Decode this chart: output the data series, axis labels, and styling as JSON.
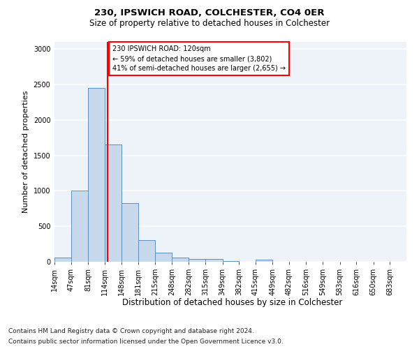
{
  "title1": "230, IPSWICH ROAD, COLCHESTER, CO4 0ER",
  "title2": "Size of property relative to detached houses in Colchester",
  "xlabel": "Distribution of detached houses by size in Colchester",
  "ylabel": "Number of detached properties",
  "footnote1": "Contains HM Land Registry data © Crown copyright and database right 2024.",
  "footnote2": "Contains public sector information licensed under the Open Government Licence v3.0.",
  "annotation_line1": "230 IPSWICH ROAD: 120sqm",
  "annotation_line2": "← 59% of detached houses are smaller (3,802)",
  "annotation_line3": "41% of semi-detached houses are larger (2,655) →",
  "bar_color": "#c9d9ec",
  "bar_edge_color": "#5a8fc3",
  "red_line_x": 120,
  "categories": [
    "14sqm",
    "47sqm",
    "81sqm",
    "114sqm",
    "148sqm",
    "181sqm",
    "215sqm",
    "248sqm",
    "282sqm",
    "315sqm",
    "349sqm",
    "382sqm",
    "415sqm",
    "449sqm",
    "482sqm",
    "516sqm",
    "549sqm",
    "583sqm",
    "616sqm",
    "650sqm",
    "683sqm"
  ],
  "bin_edges": [
    14,
    47,
    81,
    114,
    148,
    181,
    215,
    248,
    282,
    315,
    349,
    382,
    415,
    449,
    482,
    516,
    549,
    583,
    616,
    650,
    683,
    716
  ],
  "bar_heights": [
    60,
    1000,
    2450,
    1650,
    830,
    310,
    125,
    55,
    40,
    35,
    5,
    0,
    30,
    0,
    0,
    0,
    0,
    0,
    0,
    0,
    0
  ],
  "ylim": [
    0,
    3100
  ],
  "yticks": [
    0,
    500,
    1000,
    1500,
    2000,
    2500,
    3000
  ],
  "bg_color": "#eef2f9",
  "grid_color": "#ffffff",
  "title1_fontsize": 9.5,
  "title2_fontsize": 8.5,
  "ylabel_fontsize": 8,
  "xlabel_fontsize": 8.5,
  "footnote_fontsize": 6.5,
  "tick_fontsize": 7
}
